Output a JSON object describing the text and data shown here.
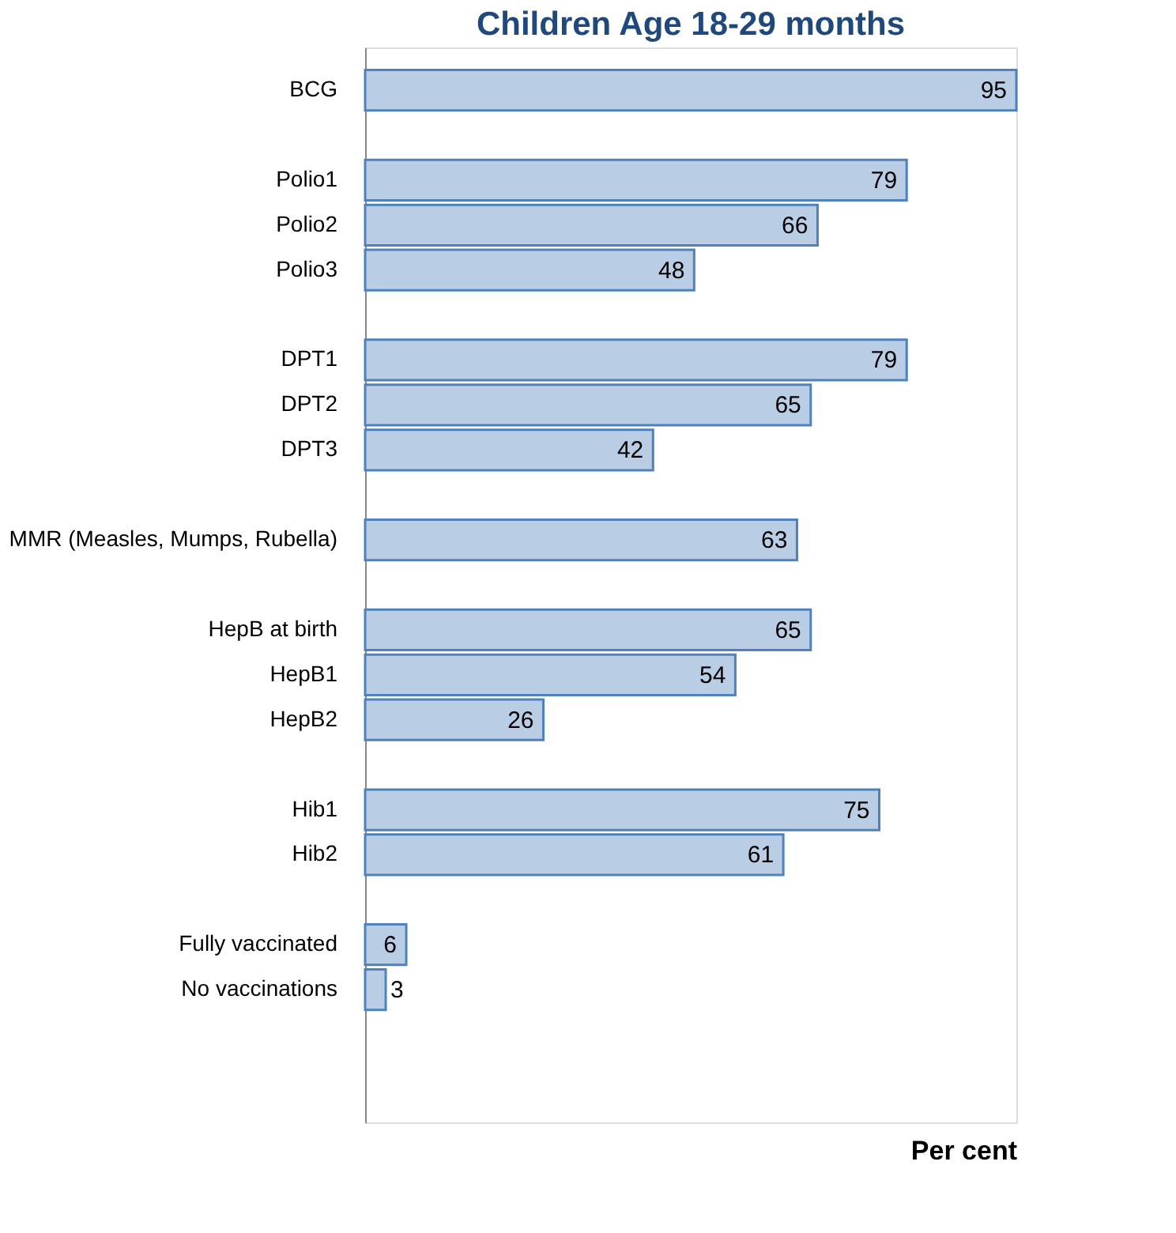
{
  "chart_data": {
    "type": "bar",
    "orientation": "horizontal",
    "title": "Children Age 18-29 months",
    "xlabel": "Per cent",
    "categories": [
      "BCG",
      null,
      "Polio1",
      "Polio2",
      "Polio3",
      null,
      "DPT1",
      "DPT2",
      "DPT3",
      null,
      "MMR (Measles, Mumps, Rubella)",
      null,
      "HepB at birth",
      "HepB1",
      "HepB2",
      null,
      "Hib1",
      "Hib2",
      null,
      "Fully vaccinated",
      "No vaccinations",
      null,
      null
    ],
    "values": [
      95,
      null,
      79,
      66,
      48,
      null,
      79,
      65,
      42,
      null,
      63,
      null,
      65,
      54,
      26,
      null,
      75,
      61,
      null,
      6,
      3,
      null,
      null
    ],
    "color": "#b9cde5",
    "data_labels": true,
    "grid": false
  }
}
